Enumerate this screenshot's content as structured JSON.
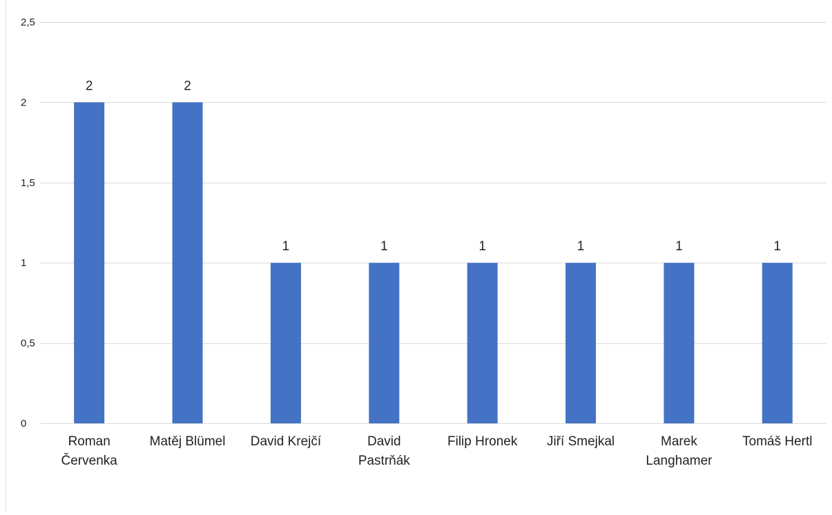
{
  "chart_data": {
    "type": "bar",
    "title": "",
    "xlabel": "",
    "ylabel": "",
    "categories": [
      "Roman Červenka",
      "Matěj Blümel",
      "David Krejčí",
      "David Pastrňák",
      "Filip Hronek",
      "Jiří Smejkal",
      "Marek Langhamer",
      "Tomáš Hertl"
    ],
    "category_lines": [
      [
        "Roman",
        "Červenka"
      ],
      [
        "Matěj Blümel"
      ],
      [
        "David Krejčí"
      ],
      [
        "David",
        "Pastrňák"
      ],
      [
        "Filip Hronek"
      ],
      [
        "Jiří Smejkal"
      ],
      [
        "Marek",
        "Langhamer"
      ],
      [
        "Tomáš Hertl"
      ]
    ],
    "values": [
      2,
      2,
      1,
      1,
      1,
      1,
      1,
      1
    ],
    "data_labels": [
      "2",
      "2",
      "1",
      "1",
      "1",
      "1",
      "1",
      "1"
    ],
    "yticks": [
      0,
      0.5,
      1,
      1.5,
      2,
      2.5
    ],
    "ytick_labels": [
      "0",
      "0,5",
      "1",
      "1,5",
      "2",
      "2,5"
    ],
    "ylim": [
      0,
      2.5
    ],
    "grid": true,
    "legend": "none",
    "bar_color": "#4472C4",
    "grid_color": "#D9D9D9"
  }
}
